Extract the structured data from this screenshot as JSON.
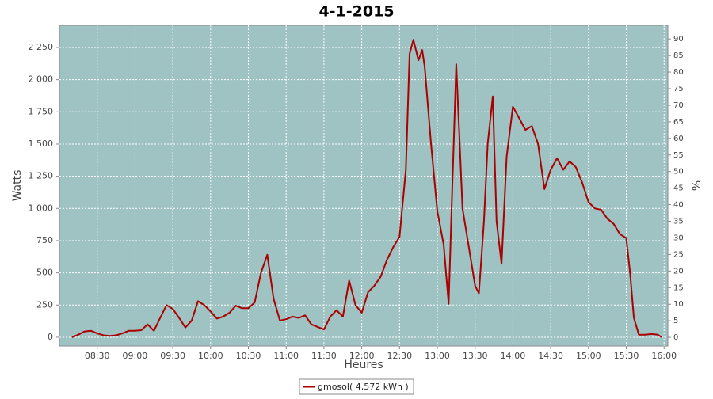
{
  "chart_data": {
    "type": "line",
    "title": "4-1-2015",
    "x_label": "Heures",
    "y_label": "Watts",
    "y2_label": "%",
    "x": [
      "08:10",
      "08:15",
      "08:20",
      "08:25",
      "08:30",
      "08:35",
      "08:40",
      "08:45",
      "08:50",
      "08:55",
      "09:00",
      "09:05",
      "09:10",
      "09:15",
      "09:20",
      "09:25",
      "09:30",
      "09:35",
      "09:40",
      "09:45",
      "09:50",
      "09:55",
      "10:00",
      "10:05",
      "10:10",
      "10:15",
      "10:20",
      "10:25",
      "10:30",
      "10:35",
      "10:40",
      "10:45",
      "10:50",
      "10:55",
      "11:00",
      "11:05",
      "11:10",
      "11:15",
      "11:20",
      "11:25",
      "11:30",
      "11:35",
      "11:40",
      "11:45",
      "11:50",
      "11:55",
      "12:00",
      "12:05",
      "12:10",
      "12:15",
      "12:20",
      "12:25",
      "12:30",
      "12:35",
      "12:38",
      "12:41",
      "12:45",
      "12:48",
      "12:50",
      "12:55",
      "13:00",
      "13:05",
      "13:09",
      "13:12",
      "13:15",
      "13:20",
      "13:25",
      "13:30",
      "13:33",
      "13:37",
      "13:40",
      "13:44",
      "13:47",
      "13:51",
      "13:55",
      "14:00",
      "14:05",
      "14:10",
      "14:15",
      "14:20",
      "14:25",
      "14:30",
      "14:35",
      "14:40",
      "14:45",
      "14:50",
      "14:55",
      "15:00",
      "15:05",
      "15:10",
      "15:15",
      "15:20",
      "15:25",
      "15:30",
      "15:33",
      "15:36",
      "15:40",
      "15:45",
      "15:50",
      "15:55",
      "15:58"
    ],
    "series": [
      {
        "name": "gmosol( 4,572 kWh )",
        "color": "#aa0000",
        "values": [
          0,
          20,
          45,
          50,
          30,
          15,
          10,
          15,
          30,
          50,
          50,
          55,
          100,
          50,
          150,
          250,
          220,
          150,
          75,
          130,
          280,
          250,
          200,
          145,
          160,
          190,
          245,
          225,
          225,
          270,
          500,
          640,
          300,
          130,
          140,
          160,
          150,
          170,
          100,
          80,
          60,
          160,
          210,
          160,
          440,
          250,
          190,
          350,
          400,
          470,
          600,
          700,
          780,
          1300,
          2200,
          2310,
          2150,
          2230,
          2100,
          1500,
          980,
          720,
          260,
          1200,
          2120,
          1000,
          700,
          400,
          340,
          900,
          1500,
          1870,
          900,
          570,
          1400,
          1790,
          1700,
          1610,
          1640,
          1500,
          1150,
          1300,
          1390,
          1300,
          1365,
          1320,
          1200,
          1050,
          1000,
          990,
          920,
          880,
          800,
          770,
          500,
          150,
          20,
          20,
          25,
          20,
          0
        ]
      }
    ],
    "xlim": [
      "08:00",
      "16:03"
    ],
    "xticks": [
      "08:30",
      "09:00",
      "09:30",
      "10:00",
      "10:30",
      "11:00",
      "11:30",
      "12:00",
      "12:30",
      "13:00",
      "13:30",
      "14:00",
      "14:30",
      "15:00",
      "15:30",
      "16:00"
    ],
    "ylim": [
      -68,
      2422
    ],
    "yticks": [
      0,
      250,
      500,
      750,
      {
        "value": 1000,
        "label": "1 000"
      },
      {
        "value": 1250,
        "label": "1 250"
      },
      {
        "value": 1500,
        "label": "1 500"
      },
      {
        "value": 1750,
        "label": "1 750"
      },
      {
        "value": 2000,
        "label": "2 000"
      },
      {
        "value": 2250,
        "label": "2 250"
      }
    ],
    "y2lim": [
      -2.6,
      94.1
    ],
    "y2ticks": [
      0,
      5,
      10,
      15,
      20,
      25,
      30,
      35,
      40,
      45,
      50,
      55,
      60,
      65,
      70,
      75,
      80,
      85,
      90
    ],
    "grid": true,
    "legend": "bottom",
    "background": "#9fc3c3"
  }
}
